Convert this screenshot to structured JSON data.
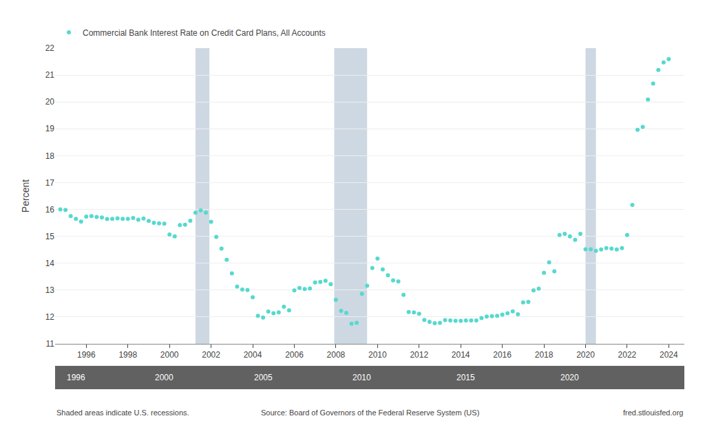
{
  "chart_data": {
    "type": "scatter",
    "ylabel": "Percent",
    "x": [
      1994.75,
      1995.0,
      1995.25,
      1995.5,
      1995.75,
      1996.0,
      1996.25,
      1996.5,
      1996.75,
      1997.0,
      1997.25,
      1997.5,
      1997.75,
      1998.0,
      1998.25,
      1998.5,
      1998.75,
      1999.0,
      1999.25,
      1999.5,
      1999.75,
      2000.0,
      2000.25,
      2000.5,
      2000.75,
      2001.0,
      2001.25,
      2001.5,
      2001.75,
      2002.0,
      2002.25,
      2002.5,
      2002.75,
      2003.0,
      2003.25,
      2003.5,
      2003.75,
      2004.0,
      2004.25,
      2004.5,
      2004.75,
      2005.0,
      2005.25,
      2005.5,
      2005.75,
      2006.0,
      2006.25,
      2006.5,
      2006.75,
      2007.0,
      2007.25,
      2007.5,
      2007.75,
      2008.0,
      2008.25,
      2008.5,
      2008.75,
      2009.0,
      2009.25,
      2009.5,
      2009.75,
      2010.0,
      2010.25,
      2010.5,
      2010.75,
      2011.0,
      2011.25,
      2011.5,
      2011.75,
      2012.0,
      2012.25,
      2012.5,
      2012.75,
      2013.0,
      2013.25,
      2013.5,
      2013.75,
      2014.0,
      2014.25,
      2014.5,
      2014.75,
      2015.0,
      2015.25,
      2015.5,
      2015.75,
      2016.0,
      2016.25,
      2016.5,
      2016.75,
      2017.0,
      2017.25,
      2017.5,
      2017.75,
      2018.0,
      2018.25,
      2018.5,
      2018.75,
      2019.0,
      2019.25,
      2019.5,
      2019.75,
      2020.0,
      2020.25,
      2020.5,
      2020.75,
      2021.0,
      2021.25,
      2021.5,
      2021.75,
      2022.0,
      2022.25,
      2022.5,
      2022.75,
      2023.0,
      2023.25,
      2023.5,
      2023.75,
      2024.0
    ],
    "series": [
      {
        "name": "Commercial Bank Interest Rate on Credit Card Plans, All Accounts",
        "color": "#56d9ce",
        "marker": "circle",
        "values": [
          16.0,
          15.98,
          15.75,
          15.65,
          15.55,
          15.73,
          15.75,
          15.72,
          15.7,
          15.64,
          15.65,
          15.67,
          15.65,
          15.65,
          15.68,
          15.62,
          15.66,
          15.57,
          15.5,
          15.48,
          15.47,
          15.07,
          15.0,
          15.42,
          15.43,
          15.58,
          15.88,
          15.96,
          15.88,
          15.54,
          14.98,
          14.54,
          14.13,
          13.62,
          13.13,
          13.02,
          13.0,
          12.73,
          12.04,
          11.98,
          12.2,
          12.14,
          12.17,
          12.38,
          12.25,
          12.99,
          13.08,
          13.04,
          13.06,
          13.28,
          13.3,
          13.35,
          13.22,
          12.64,
          12.23,
          12.15,
          11.75,
          11.78,
          12.86,
          13.16,
          13.82,
          14.17,
          13.77,
          13.55,
          13.36,
          13.32,
          12.82,
          12.18,
          12.17,
          12.12,
          11.89,
          11.82,
          11.77,
          11.78,
          11.88,
          11.87,
          11.86,
          11.86,
          11.87,
          11.87,
          11.87,
          11.96,
          12.02,
          12.03,
          12.04,
          12.09,
          12.14,
          12.21,
          12.1,
          12.54,
          12.56,
          12.99,
          13.05,
          13.64,
          14.03,
          13.7,
          15.05,
          15.09,
          15.0,
          14.87,
          15.09,
          14.52,
          14.52,
          14.46,
          14.51,
          14.56,
          14.54,
          14.51,
          14.56,
          15.05,
          16.17,
          18.96,
          19.07,
          20.09,
          20.68,
          21.19,
          21.47,
          21.59
        ]
      }
    ],
    "xlim": [
      1994.5,
      2024.75
    ],
    "xticks": [
      1996,
      1998,
      2000,
      2002,
      2004,
      2006,
      2008,
      2010,
      2012,
      2014,
      2016,
      2018,
      2020,
      2022,
      2024
    ],
    "ylim": [
      11,
      22
    ],
    "yticks": [
      11,
      12,
      13,
      14,
      15,
      16,
      17,
      18,
      19,
      20,
      21,
      22
    ],
    "grid": "y",
    "legend": "upper left",
    "recessions": {
      "color": "#cdd8e3",
      "spans": [
        [
          2001.25,
          2001.92
        ],
        [
          2007.92,
          2009.5
        ],
        [
          2020.0,
          2020.5
        ]
      ]
    },
    "bar": {
      "color": "#616161",
      "labels": [
        {
          "x": 1995.5,
          "label": "1996"
        },
        {
          "x": 1999.75,
          "label": "2000"
        },
        {
          "x": 2004.5,
          "label": "2005"
        },
        {
          "x": 2009.25,
          "label": "2010"
        },
        {
          "x": 2014.25,
          "label": "2015"
        },
        {
          "x": 2019.25,
          "label": "2020"
        }
      ]
    },
    "footer": {
      "left": "Shaded areas indicate U.S. recessions.",
      "center": "Source: Board of Governors of the Federal Reserve System (US)",
      "right": "fred.stlouisfed.org"
    }
  }
}
